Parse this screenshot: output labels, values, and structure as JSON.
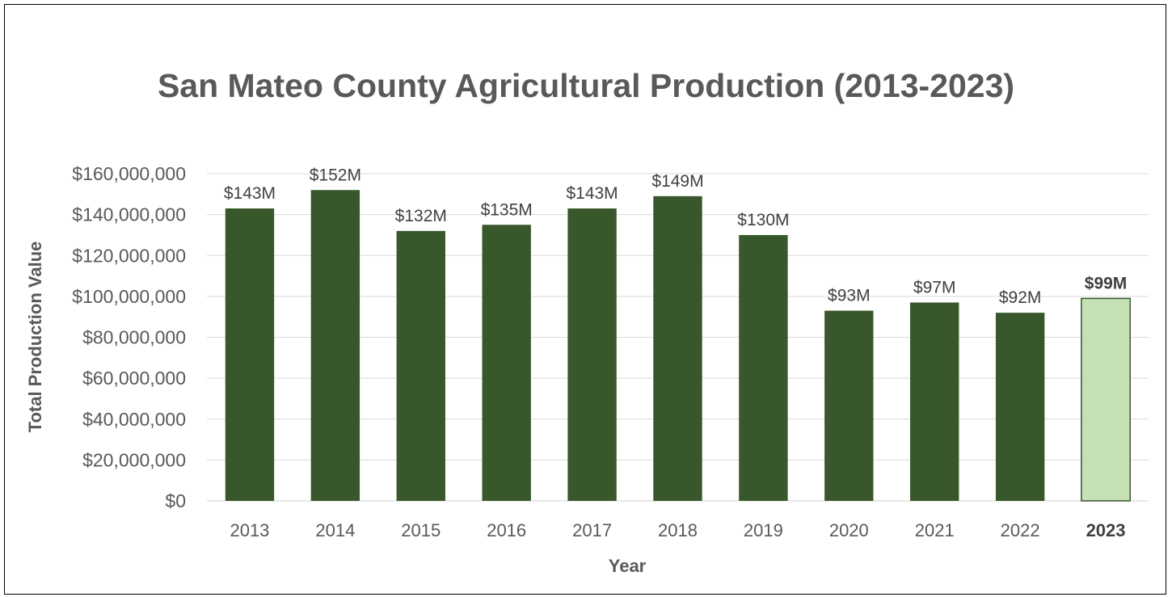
{
  "chart_data": {
    "type": "bar",
    "title": "San Mateo County Agricultural Production (2013-2023)",
    "xlabel": "Year",
    "ylabel": "Total Production Value",
    "categories": [
      "2013",
      "2014",
      "2015",
      "2016",
      "2017",
      "2018",
      "2019",
      "2020",
      "2021",
      "2022",
      "2023"
    ],
    "values": [
      143000000,
      152000000,
      132000000,
      135000000,
      143000000,
      149000000,
      130000000,
      93000000,
      97000000,
      92000000,
      99000000
    ],
    "data_labels": [
      "$143M",
      "$152M",
      "$132M",
      "$135M",
      "$143M",
      "$149M",
      "$130M",
      "$93M",
      "$97M",
      "$92M",
      "$99M"
    ],
    "ylim": [
      0,
      160000000
    ],
    "yticks": [
      0,
      20000000,
      40000000,
      60000000,
      80000000,
      100000000,
      120000000,
      140000000,
      160000000
    ],
    "ytick_labels": [
      "$0",
      "$20,000,000",
      "$40,000,000",
      "$60,000,000",
      "$80,000,000",
      "$100,000,000",
      "$120,000,000",
      "$140,000,000",
      "$160,000,000"
    ],
    "highlight_category": "2023",
    "grid": true,
    "legend": "none",
    "colors": {
      "bar": "#38572a",
      "highlight_bar": "#c5e0b4",
      "highlight_border": "#38572a",
      "text": "#595959",
      "grid": "#d9d9d9"
    }
  }
}
